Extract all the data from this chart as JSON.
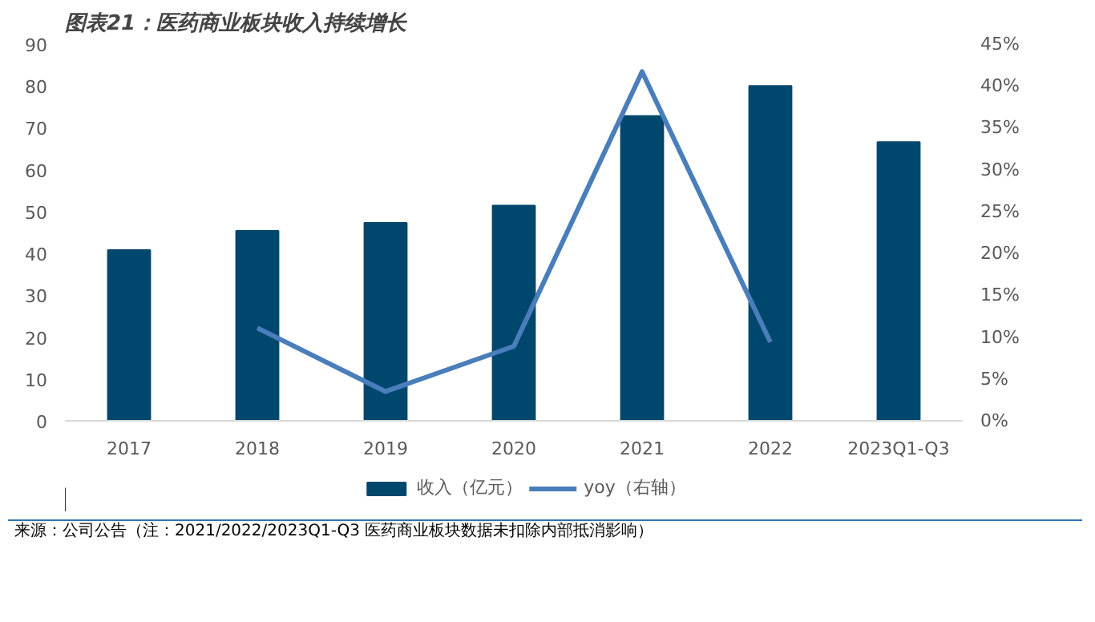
{
  "chart_data": {
    "type": "bar",
    "title": "图表21：医药商业板块收入持续增长",
    "categories": [
      "2017",
      "2018",
      "2019",
      "2020",
      "2021",
      "2022",
      "2023Q1-Q3"
    ],
    "series": [
      {
        "name": "收入（亿元）",
        "color": "#00476e",
        "values": [
          40.8,
          45.4,
          47.3,
          51.4,
          72.8,
          80.0,
          66.6
        ]
      },
      {
        "name": "yoy（右轴）",
        "type": "line",
        "axis": "y2",
        "color": "#4a7ebb",
        "values": [
          null,
          11.1,
          3.5,
          8.9,
          41.7,
          9.4,
          null
        ]
      }
    ],
    "ylim": [
      0,
      90
    ],
    "yticks": [
      0,
      10,
      20,
      30,
      40,
      50,
      60,
      70,
      80,
      90
    ],
    "y2lim": [
      0,
      45
    ],
    "y2ticks": [
      {
        "value": 0,
        "label": "0%"
      },
      {
        "value": 5,
        "label": "5%"
      },
      {
        "value": 10,
        "label": "10%"
      },
      {
        "value": 15,
        "label": "15%"
      },
      {
        "value": 20,
        "label": "20%"
      },
      {
        "value": 25,
        "label": "25%"
      },
      {
        "value": 30,
        "label": "30%"
      },
      {
        "value": 35,
        "label": "35%"
      },
      {
        "value": 40,
        "label": "40%"
      },
      {
        "value": 45,
        "label": "45%"
      }
    ],
    "grid": false,
    "legend": "bottom",
    "marker": "none",
    "line_style": "solid",
    "annotations": [
      "来源：公司公告（注：2021/2022/2023Q1-Q3 医药商业板块数据未扣除内部抵消影响）"
    ]
  }
}
